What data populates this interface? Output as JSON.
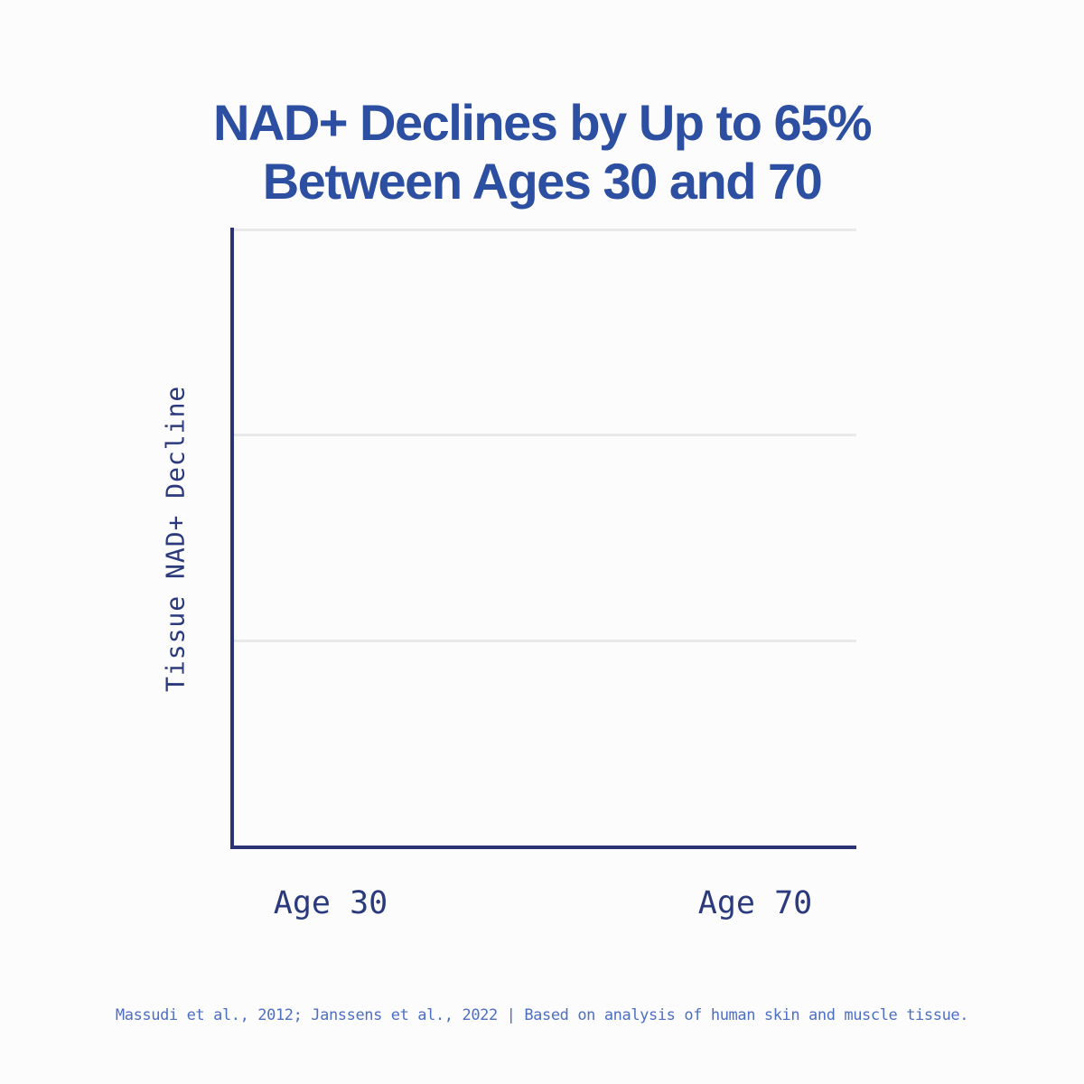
{
  "header": {
    "title_line1": "NAD+ Declines by Up to 65%",
    "title_line2": "Between Ages 30 and 70"
  },
  "chart_data": {
    "type": "bar",
    "title": "NAD+ Declines by Up to 65% Between Ages 30 and 70",
    "categories": [
      "Age 30",
      "Age 70"
    ],
    "series": [],
    "values": [],
    "xlabel": "",
    "ylabel": "Tissue NAD+ Decline",
    "y_tick_labels": [],
    "gridlines": 3,
    "grid": "horizontal",
    "legend": false,
    "note": "Plot area is empty in this frame; no bars or data marks are drawn"
  },
  "footer": {
    "source_text": "Massudi et al., 2012; Janssens et al., 2022 | Based on analysis of human skin and muscle tissue."
  },
  "colors": {
    "title_blue": "#2d4fa1",
    "axis_navy": "#2b3374",
    "tick_navy": "#2b3a7c",
    "footer_blue": "#4d6fc2",
    "gridline_gray": "#e9e9e9",
    "background": "#fcfcfc"
  }
}
